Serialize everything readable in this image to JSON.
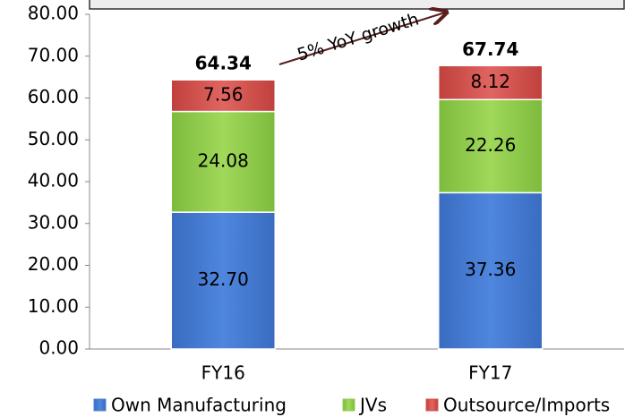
{
  "chart_data": {
    "type": "stacked_bar",
    "annotation": "5% YoY growth",
    "categories": [
      "FY16",
      "FY17"
    ],
    "series": [
      {
        "name": "Own Manufacturing",
        "color": "#4f81d4",
        "values": [
          32.7,
          37.36
        ],
        "value_labels": [
          "32.70",
          "37.36"
        ]
      },
      {
        "name": "JVs",
        "color": "#92d050",
        "values": [
          24.08,
          22.26
        ]
      },
      {
        "name": "Outsource/Imports",
        "color": "#d9534f",
        "values": [
          7.56,
          8.12
        ]
      }
    ],
    "totals": [
      64.34,
      67.74
    ],
    "ylim": [
      0,
      80
    ],
    "yticks": [
      {
        "value": 0,
        "label": "0.00"
      },
      {
        "value": 10,
        "label": "10.00"
      },
      {
        "value": 20,
        "label": "20.00"
      },
      {
        "value": 30,
        "label": "30.00"
      },
      {
        "value": 40,
        "label": "40.00"
      },
      {
        "value": 50,
        "label": "50.00"
      },
      {
        "value": 60,
        "label": "60.00"
      },
      {
        "value": 70,
        "label": "70.00"
      },
      {
        "value": 80,
        "label": "80.00"
      }
    ],
    "legend": "bottom"
  }
}
